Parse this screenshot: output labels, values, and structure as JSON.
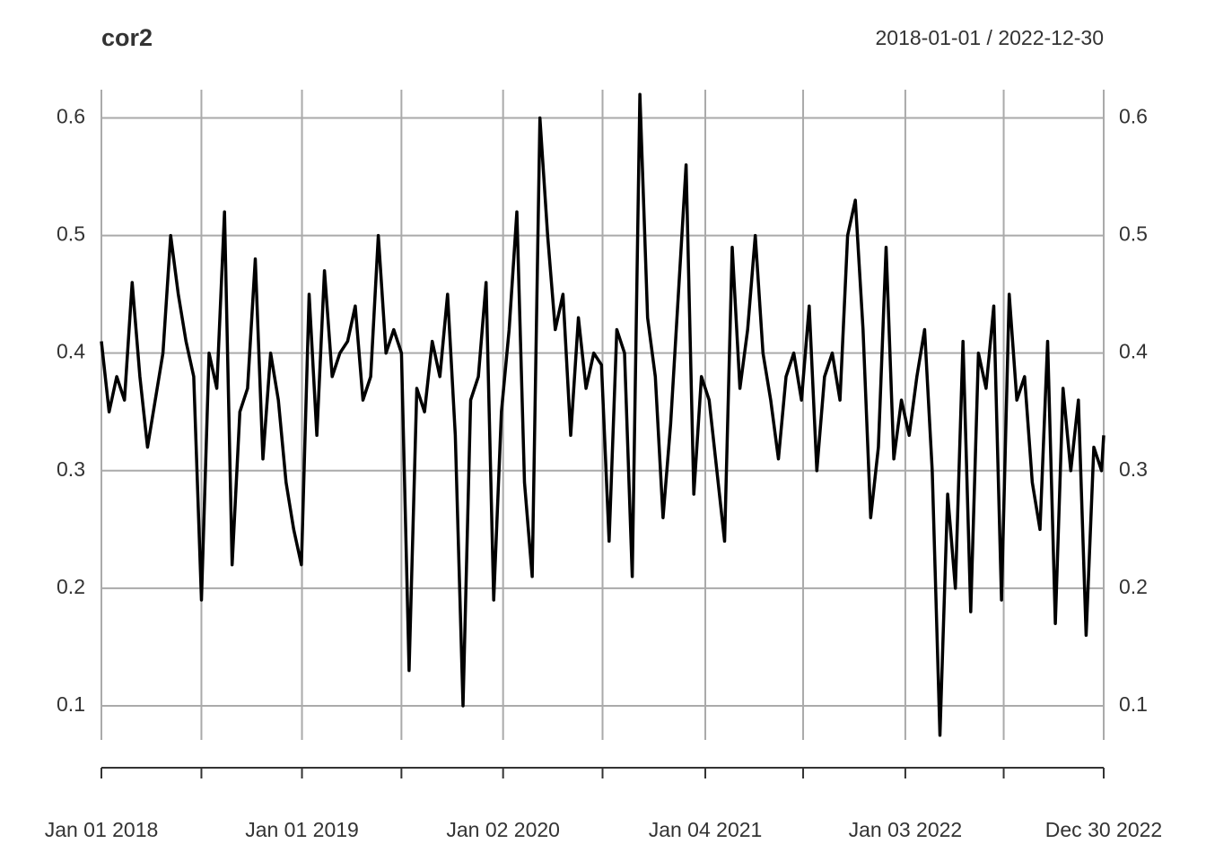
{
  "chart_data": {
    "type": "line",
    "title": "cor2",
    "subtitle": "2018-01-01 / 2022-12-30",
    "color": "#000000",
    "grid": true,
    "xlim": [
      "2018-01-01",
      "2022-12-30"
    ],
    "xticks": [
      {
        "value": "2018-01-01",
        "label": "Jan 01 2018"
      },
      {
        "value": "2019-01-01",
        "label": "Jan 01 2019"
      },
      {
        "value": "2020-01-02",
        "label": "Jan 02 2020"
      },
      {
        "value": "2021-01-04",
        "label": "Jan 04 2021"
      },
      {
        "value": "2022-01-03",
        "label": "Jan 03 2022"
      },
      {
        "value": "2022-12-30",
        "label": "Dec 30 2022"
      }
    ],
    "xminorticks": [
      "2018-07-02",
      "2019-07-01",
      "2020-07-01",
      "2021-07-01",
      "2022-07-01"
    ],
    "ylim": [
      0.071,
      0.624
    ],
    "yticks": [
      0.1,
      0.2,
      0.3,
      0.4,
      0.5,
      0.6
    ],
    "x": [
      "2018-01-01",
      "2018-01-15",
      "2018-01-29",
      "2018-02-12",
      "2018-02-26",
      "2018-03-12",
      "2018-03-26",
      "2018-04-09",
      "2018-04-23",
      "2018-05-07",
      "2018-05-21",
      "2018-06-04",
      "2018-06-18",
      "2018-07-02",
      "2018-07-16",
      "2018-07-30",
      "2018-08-13",
      "2018-08-27",
      "2018-09-10",
      "2018-09-24",
      "2018-10-08",
      "2018-10-22",
      "2018-11-05",
      "2018-11-19",
      "2018-12-03",
      "2018-12-17",
      "2018-12-31",
      "2019-01-14",
      "2019-01-28",
      "2019-02-11",
      "2019-02-25",
      "2019-03-11",
      "2019-03-25",
      "2019-04-08",
      "2019-04-22",
      "2019-05-06",
      "2019-05-20",
      "2019-06-03",
      "2019-06-17",
      "2019-07-01",
      "2019-07-15",
      "2019-07-29",
      "2019-08-12",
      "2019-08-26",
      "2019-09-09",
      "2019-09-23",
      "2019-10-07",
      "2019-10-21",
      "2019-11-04",
      "2019-11-18",
      "2019-12-02",
      "2019-12-16",
      "2019-12-30",
      "2020-01-13",
      "2020-01-27",
      "2020-02-10",
      "2020-02-24",
      "2020-03-09",
      "2020-03-23",
      "2020-04-06",
      "2020-04-20",
      "2020-05-04",
      "2020-05-18",
      "2020-06-01",
      "2020-06-15",
      "2020-06-29",
      "2020-07-13",
      "2020-07-27",
      "2020-08-10",
      "2020-08-24",
      "2020-09-07",
      "2020-09-21",
      "2020-10-05",
      "2020-10-19",
      "2020-11-02",
      "2020-11-16",
      "2020-11-30",
      "2020-12-14",
      "2020-12-28",
      "2021-01-11",
      "2021-01-25",
      "2021-02-08",
      "2021-02-22",
      "2021-03-08",
      "2021-03-22",
      "2021-04-05",
      "2021-04-19",
      "2021-05-03",
      "2021-05-17",
      "2021-05-31",
      "2021-06-14",
      "2021-06-28",
      "2021-07-12",
      "2021-07-26",
      "2021-08-09",
      "2021-08-23",
      "2021-09-06",
      "2021-09-20",
      "2021-10-04",
      "2021-10-18",
      "2021-11-01",
      "2021-11-15",
      "2021-11-29",
      "2021-12-13",
      "2021-12-27",
      "2022-01-10",
      "2022-01-24",
      "2022-02-07",
      "2022-02-21",
      "2022-03-07",
      "2022-03-21",
      "2022-04-04",
      "2022-04-18",
      "2022-05-02",
      "2022-05-16",
      "2022-05-30",
      "2022-06-13",
      "2022-06-27",
      "2022-07-11",
      "2022-07-25",
      "2022-08-08",
      "2022-08-22",
      "2022-09-05",
      "2022-09-19",
      "2022-10-03",
      "2022-10-17",
      "2022-10-31",
      "2022-11-14",
      "2022-11-28",
      "2022-12-12",
      "2022-12-26",
      "2022-12-30"
    ],
    "values": [
      0.41,
      0.35,
      0.38,
      0.36,
      0.46,
      0.38,
      0.32,
      0.36,
      0.4,
      0.5,
      0.45,
      0.41,
      0.38,
      0.19,
      0.4,
      0.37,
      0.52,
      0.22,
      0.35,
      0.37,
      0.48,
      0.31,
      0.4,
      0.36,
      0.29,
      0.25,
      0.22,
      0.45,
      0.33,
      0.47,
      0.38,
      0.4,
      0.41,
      0.44,
      0.36,
      0.38,
      0.5,
      0.4,
      0.42,
      0.4,
      0.13,
      0.37,
      0.35,
      0.41,
      0.38,
      0.45,
      0.33,
      0.1,
      0.36,
      0.38,
      0.46,
      0.19,
      0.35,
      0.42,
      0.52,
      0.29,
      0.21,
      0.6,
      0.5,
      0.42,
      0.45,
      0.33,
      0.43,
      0.37,
      0.4,
      0.39,
      0.24,
      0.42,
      0.4,
      0.21,
      0.62,
      0.43,
      0.38,
      0.26,
      0.34,
      0.45,
      0.56,
      0.28,
      0.38,
      0.36,
      0.3,
      0.24,
      0.49,
      0.37,
      0.42,
      0.5,
      0.4,
      0.36,
      0.31,
      0.38,
      0.4,
      0.36,
      0.44,
      0.3,
      0.38,
      0.4,
      0.36,
      0.5,
      0.53,
      0.42,
      0.26,
      0.32,
      0.49,
      0.31,
      0.36,
      0.33,
      0.38,
      0.42,
      0.3,
      0.075,
      0.28,
      0.2,
      0.41,
      0.18,
      0.4,
      0.37,
      0.44,
      0.19,
      0.45,
      0.36,
      0.38,
      0.29,
      0.25,
      0.41,
      0.17,
      0.37,
      0.3,
      0.36,
      0.16,
      0.32,
      0.3,
      0.33
    ]
  }
}
